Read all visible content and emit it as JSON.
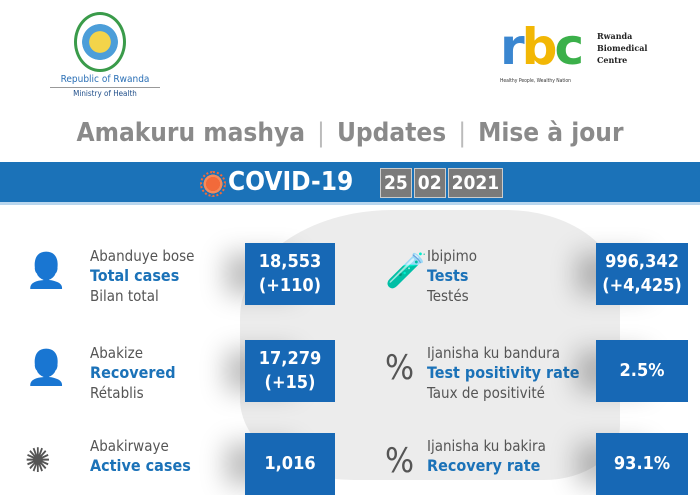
{
  "header": {
    "moh_line1": "Republic of Rwanda",
    "moh_line2": "Ministry of Health",
    "rbc_logo": "rbc",
    "rbc_name": [
      "Rwanda",
      "Biomedical",
      "Centre"
    ],
    "rbc_tagline": "Healthy People, Wealthy Nation"
  },
  "title": {
    "rw": "Amakuru mashya",
    "en": "Updates",
    "fr": "Mise à jour"
  },
  "band": {
    "label": "COVID-19",
    "date": [
      "25",
      "02",
      "2021"
    ]
  },
  "stats": [
    {
      "rw": "Abanduye bose",
      "en": "Total cases",
      "fr": "Bilan total",
      "value": "18,553",
      "delta": "(+110)",
      "icon": "person-virus-icon"
    },
    {
      "rw": "Ibipimo",
      "en": "Tests",
      "fr": "Testés",
      "value": "996,342",
      "delta": "(+4,425)",
      "icon": "test-tube-icon"
    },
    {
      "rw": "Abakize",
      "en": "Recovered",
      "fr": "Rétablis",
      "value": "17,279",
      "delta": "(+15)",
      "icon": "person-shield-heart-icon"
    },
    {
      "rw": "Ijanisha ku bandura",
      "en": "Test positivity rate",
      "fr": "Taux de positivité",
      "value": "2.5%",
      "delta": "",
      "icon": "percent-test-tubes-icon"
    },
    {
      "rw": "Abakirwaye",
      "en": "Active cases",
      "fr": "",
      "value": "1,016",
      "delta": "",
      "icon": "patient-virus-icon"
    },
    {
      "rw": "Ijanisha ku bakira",
      "en": "Recovery rate",
      "fr": "",
      "value": "93.1%",
      "delta": "",
      "icon": "percent-shield-icon"
    }
  ],
  "colors": {
    "blue": "#1b72b8",
    "gray": "#8a8a8a"
  }
}
